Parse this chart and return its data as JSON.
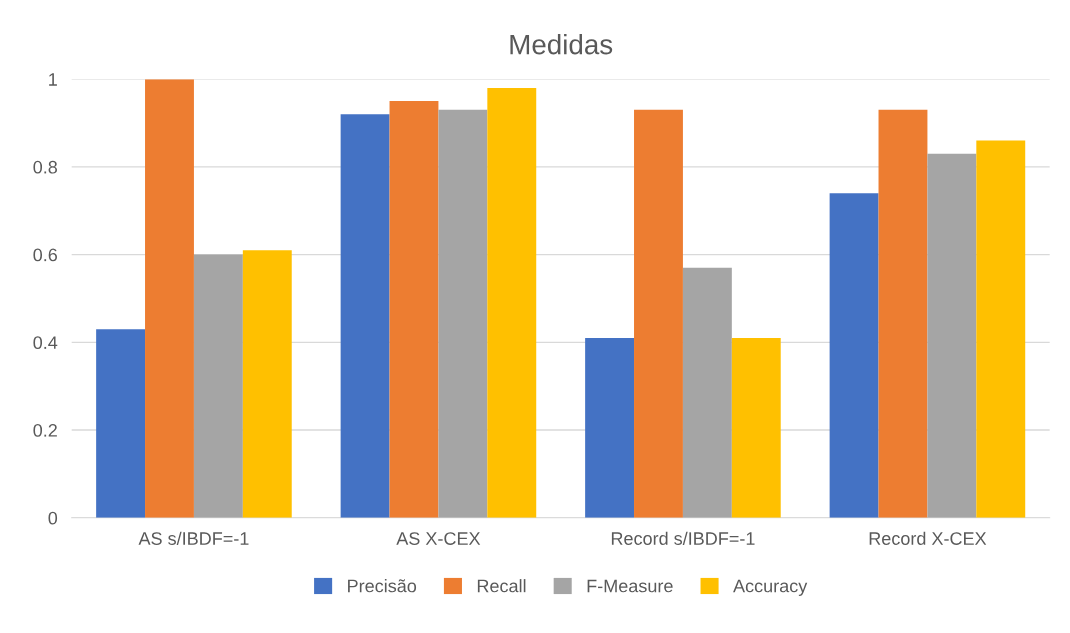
{
  "chart_data": {
    "type": "bar",
    "title": "Medidas",
    "categories": [
      "AS s/IBDF=-1",
      "AS X-CEX",
      "Record s/IBDF=-1",
      "Record X-CEX"
    ],
    "series": [
      {
        "name": "Precisão",
        "color": "#4472c4",
        "values": [
          0.43,
          0.92,
          0.41,
          0.74
        ]
      },
      {
        "name": "Recall",
        "color": "#ed7d31",
        "values": [
          1.0,
          0.95,
          0.93,
          0.93
        ]
      },
      {
        "name": "F-Measure",
        "color": "#a5a5a5",
        "values": [
          0.6,
          0.93,
          0.57,
          0.83
        ]
      },
      {
        "name": "Accuracy",
        "color": "#ffc000",
        "values": [
          0.61,
          0.98,
          0.41,
          0.86
        ]
      }
    ],
    "ylim": [
      0,
      1
    ],
    "yticks": [
      0,
      0.2,
      0.4,
      0.6,
      0.8,
      1
    ],
    "grid": "y",
    "legend": "bottom"
  }
}
